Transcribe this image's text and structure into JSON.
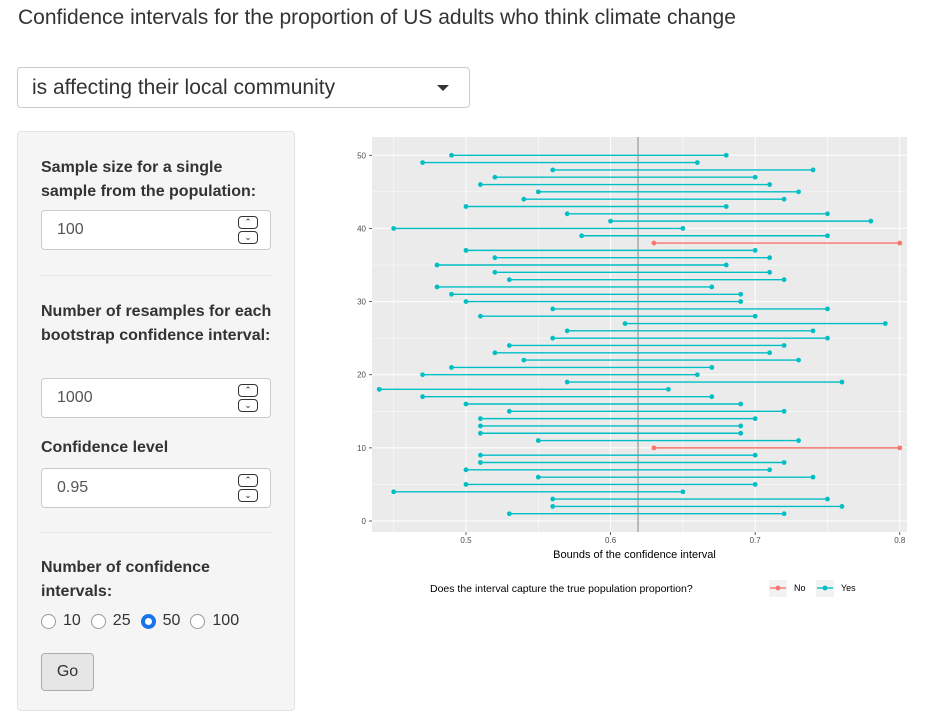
{
  "app": {
    "title": "Confidence intervals for the proportion of US adults who think climate change"
  },
  "question_select": {
    "selected": "is affecting their local community"
  },
  "sidebar": {
    "sample_size": {
      "label": "Sample size for a single sample from the population:",
      "value": "100"
    },
    "resamples": {
      "label": "Number of resamples for each bootstrap confidence interval:",
      "value": "1000"
    },
    "confidence_level": {
      "label": "Confidence level",
      "value": "0.95"
    },
    "num_intervals": {
      "label": "Number of confidence intervals:",
      "options": [
        "10",
        "25",
        "50",
        "100"
      ],
      "selected": "50"
    },
    "go_label": "Go"
  },
  "colors": {
    "yes": "#00BFC4",
    "no": "#F8766D",
    "panel_bg": "#EBEBEB",
    "grid": "#FFFFFF",
    "true_line": "#A9A9A9",
    "radio_selected": "#1A73E8"
  },
  "chart_data": {
    "type": "dumbbell",
    "xlabel": "Bounds of the confidence interval",
    "ylabel": "",
    "xlim": [
      0.435,
      0.805
    ],
    "ylim": [
      -1.5,
      52.5
    ],
    "xticks": [
      0.5,
      0.6,
      0.7,
      0.8
    ],
    "yticks": [
      0,
      10,
      20,
      30,
      40,
      50
    ],
    "true_proportion": 0.619,
    "grid": true,
    "legend": {
      "title": "Does the interval capture the true population proportion?",
      "position": "bottom",
      "entries": [
        "No",
        "Yes"
      ]
    },
    "intervals": [
      {
        "id": 1,
        "lower": 0.53,
        "upper": 0.72,
        "captured": "Yes"
      },
      {
        "id": 2,
        "lower": 0.56,
        "upper": 0.76,
        "captured": "Yes"
      },
      {
        "id": 3,
        "lower": 0.56,
        "upper": 0.75,
        "captured": "Yes"
      },
      {
        "id": 4,
        "lower": 0.45,
        "upper": 0.65,
        "captured": "Yes"
      },
      {
        "id": 5,
        "lower": 0.5,
        "upper": 0.7,
        "captured": "Yes"
      },
      {
        "id": 6,
        "lower": 0.55,
        "upper": 0.74,
        "captured": "Yes"
      },
      {
        "id": 7,
        "lower": 0.5,
        "upper": 0.71,
        "captured": "Yes"
      },
      {
        "id": 8,
        "lower": 0.51,
        "upper": 0.72,
        "captured": "Yes"
      },
      {
        "id": 9,
        "lower": 0.51,
        "upper": 0.7,
        "captured": "Yes"
      },
      {
        "id": 10,
        "lower": 0.63,
        "upper": 0.8,
        "captured": "No"
      },
      {
        "id": 11,
        "lower": 0.55,
        "upper": 0.73,
        "captured": "Yes"
      },
      {
        "id": 12,
        "lower": 0.51,
        "upper": 0.69,
        "captured": "Yes"
      },
      {
        "id": 13,
        "lower": 0.51,
        "upper": 0.69,
        "captured": "Yes"
      },
      {
        "id": 14,
        "lower": 0.51,
        "upper": 0.7,
        "captured": "Yes"
      },
      {
        "id": 15,
        "lower": 0.53,
        "upper": 0.72,
        "captured": "Yes"
      },
      {
        "id": 16,
        "lower": 0.5,
        "upper": 0.69,
        "captured": "Yes"
      },
      {
        "id": 17,
        "lower": 0.47,
        "upper": 0.67,
        "captured": "Yes"
      },
      {
        "id": 18,
        "lower": 0.44,
        "upper": 0.64,
        "captured": "Yes"
      },
      {
        "id": 19,
        "lower": 0.57,
        "upper": 0.76,
        "captured": "Yes"
      },
      {
        "id": 20,
        "lower": 0.47,
        "upper": 0.66,
        "captured": "Yes"
      },
      {
        "id": 21,
        "lower": 0.49,
        "upper": 0.67,
        "captured": "Yes"
      },
      {
        "id": 22,
        "lower": 0.54,
        "upper": 0.73,
        "captured": "Yes"
      },
      {
        "id": 23,
        "lower": 0.52,
        "upper": 0.71,
        "captured": "Yes"
      },
      {
        "id": 24,
        "lower": 0.53,
        "upper": 0.72,
        "captured": "Yes"
      },
      {
        "id": 25,
        "lower": 0.56,
        "upper": 0.75,
        "captured": "Yes"
      },
      {
        "id": 26,
        "lower": 0.57,
        "upper": 0.74,
        "captured": "Yes"
      },
      {
        "id": 27,
        "lower": 0.61,
        "upper": 0.79,
        "captured": "Yes"
      },
      {
        "id": 28,
        "lower": 0.51,
        "upper": 0.7,
        "captured": "Yes"
      },
      {
        "id": 29,
        "lower": 0.56,
        "upper": 0.75,
        "captured": "Yes"
      },
      {
        "id": 30,
        "lower": 0.5,
        "upper": 0.69,
        "captured": "Yes"
      },
      {
        "id": 31,
        "lower": 0.49,
        "upper": 0.69,
        "captured": "Yes"
      },
      {
        "id": 32,
        "lower": 0.48,
        "upper": 0.67,
        "captured": "Yes"
      },
      {
        "id": 33,
        "lower": 0.53,
        "upper": 0.72,
        "captured": "Yes"
      },
      {
        "id": 34,
        "lower": 0.52,
        "upper": 0.71,
        "captured": "Yes"
      },
      {
        "id": 35,
        "lower": 0.48,
        "upper": 0.68,
        "captured": "Yes"
      },
      {
        "id": 36,
        "lower": 0.52,
        "upper": 0.71,
        "captured": "Yes"
      },
      {
        "id": 37,
        "lower": 0.5,
        "upper": 0.7,
        "captured": "Yes"
      },
      {
        "id": 38,
        "lower": 0.63,
        "upper": 0.8,
        "captured": "No"
      },
      {
        "id": 39,
        "lower": 0.58,
        "upper": 0.75,
        "captured": "Yes"
      },
      {
        "id": 40,
        "lower": 0.45,
        "upper": 0.65,
        "captured": "Yes"
      },
      {
        "id": 41,
        "lower": 0.6,
        "upper": 0.78,
        "captured": "Yes"
      },
      {
        "id": 42,
        "lower": 0.57,
        "upper": 0.75,
        "captured": "Yes"
      },
      {
        "id": 43,
        "lower": 0.5,
        "upper": 0.68,
        "captured": "Yes"
      },
      {
        "id": 44,
        "lower": 0.54,
        "upper": 0.72,
        "captured": "Yes"
      },
      {
        "id": 45,
        "lower": 0.55,
        "upper": 0.73,
        "captured": "Yes"
      },
      {
        "id": 46,
        "lower": 0.51,
        "upper": 0.71,
        "captured": "Yes"
      },
      {
        "id": 47,
        "lower": 0.52,
        "upper": 0.7,
        "captured": "Yes"
      },
      {
        "id": 48,
        "lower": 0.56,
        "upper": 0.74,
        "captured": "Yes"
      },
      {
        "id": 49,
        "lower": 0.47,
        "upper": 0.66,
        "captured": "Yes"
      },
      {
        "id": 50,
        "lower": 0.49,
        "upper": 0.68,
        "captured": "Yes"
      }
    ]
  }
}
